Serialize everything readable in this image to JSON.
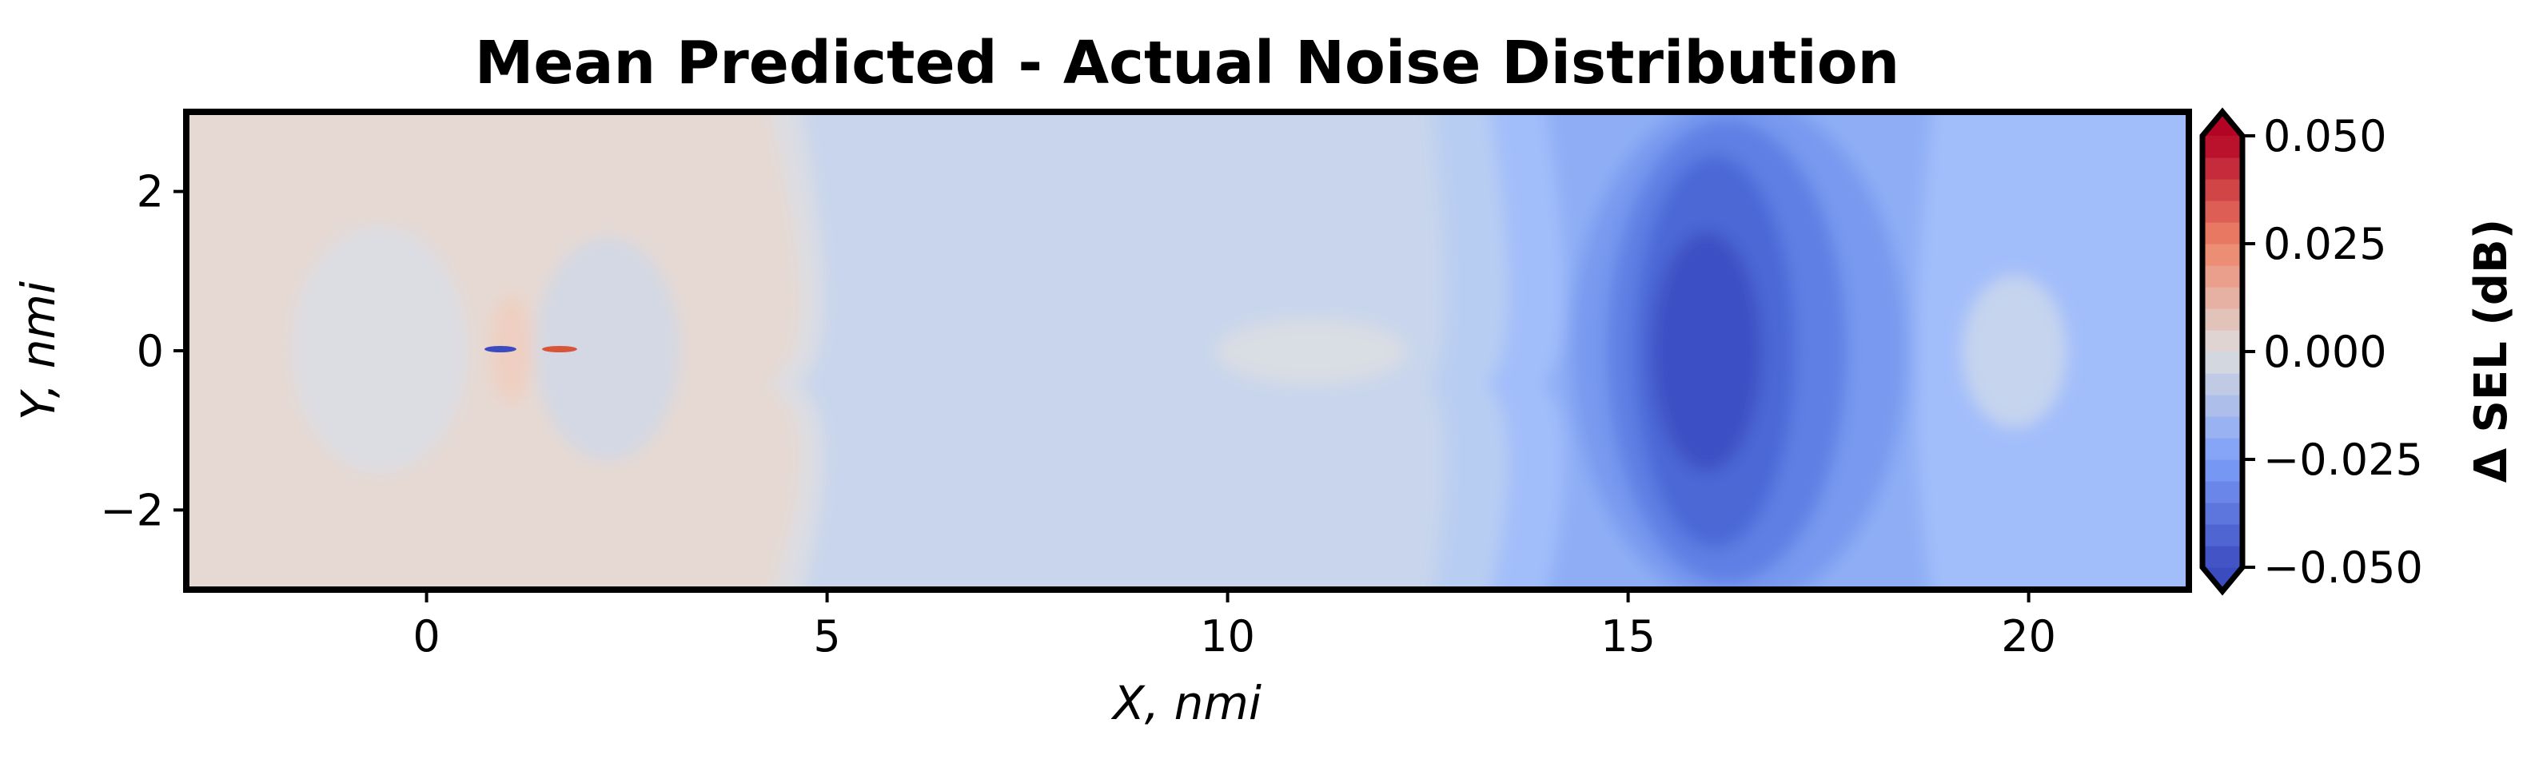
{
  "chart_data": {
    "type": "heatmap",
    "title": "Mean Predicted - Actual Noise Distribution",
    "xlabel": "X, nmi",
    "ylabel": "Y, nmi",
    "xlim": [
      -3,
      22
    ],
    "ylim": [
      -3,
      3
    ],
    "x_ticks": [
      {
        "value": 0,
        "label": "0"
      },
      {
        "value": 5,
        "label": "5"
      },
      {
        "value": 10,
        "label": "10"
      },
      {
        "value": 15,
        "label": "15"
      },
      {
        "value": 20,
        "label": "20"
      }
    ],
    "y_ticks": [
      {
        "value": 2,
        "label": "2"
      },
      {
        "value": 0,
        "label": "0"
      },
      {
        "value": -2,
        "label": "−2"
      }
    ],
    "colorbar": {
      "label": "Δ SEL (dB)",
      "range": [
        -0.05,
        0.05
      ],
      "extend": "both",
      "colormap": "coolwarm",
      "ticks": [
        {
          "value": 0.05,
          "label": "0.050"
        },
        {
          "value": 0.025,
          "label": "0.025"
        },
        {
          "value": 0.0,
          "label": "0.000"
        },
        {
          "value": -0.025,
          "label": "−0.025"
        },
        {
          "value": -0.05,
          "label": "−0.050"
        }
      ]
    },
    "approximate_field": {
      "x": [
        -3,
        -1.5,
        0.5,
        1,
        1.5,
        3,
        4.5,
        5.5,
        8,
        10,
        12.5,
        13.5,
        14.5,
        15.5,
        16.3,
        17.5,
        18.5,
        19.5,
        21,
        22
      ],
      "value_on_centerline": [
        0.004,
        0.0,
        0.0,
        0.008,
        0.008,
        -0.002,
        -0.004,
        -0.008,
        -0.009,
        -0.003,
        -0.012,
        -0.017,
        -0.025,
        -0.036,
        -0.043,
        -0.036,
        -0.026,
        -0.012,
        -0.017,
        -0.018
      ]
    }
  }
}
